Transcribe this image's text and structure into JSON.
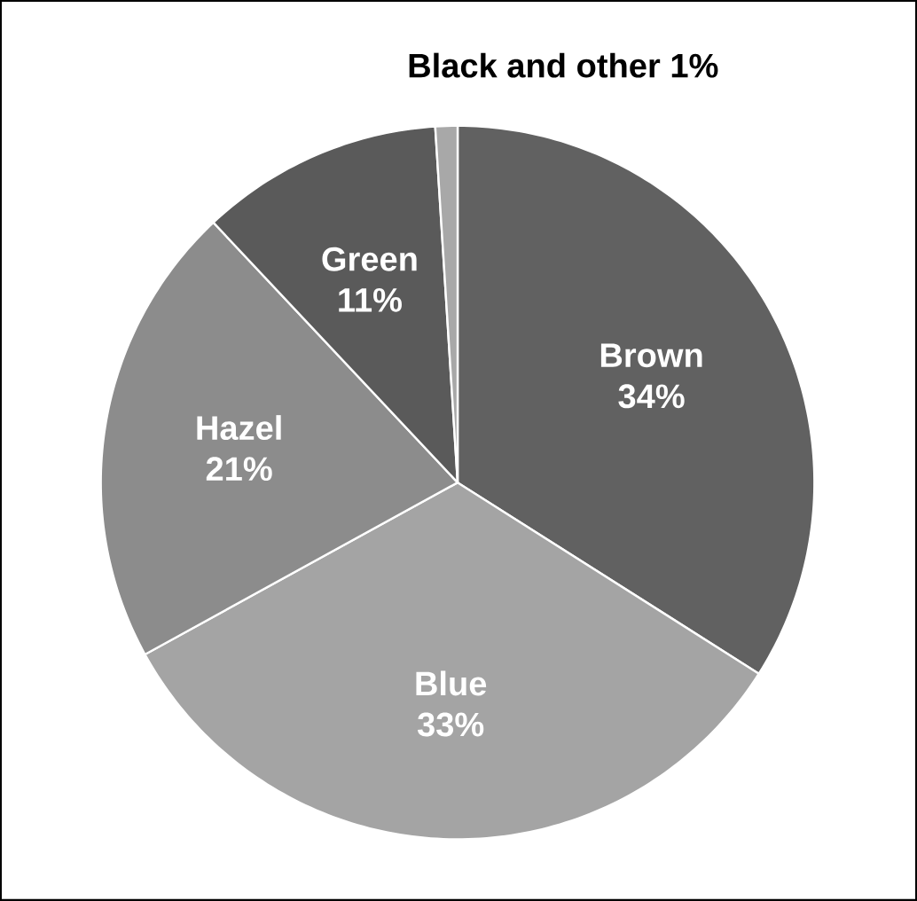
{
  "chart_data": {
    "type": "pie",
    "categories": [
      "Brown",
      "Blue",
      "Hazel",
      "Green",
      "Black and other"
    ],
    "values": [
      34,
      33,
      21,
      11,
      1
    ],
    "value_labels": [
      "34%",
      "33%",
      "21%",
      "11%",
      "1%"
    ],
    "colors": [
      "#616161",
      "#a4a4a4",
      "#8c8c8c",
      "#5a5a5a",
      "#a8a8a8"
    ]
  }
}
